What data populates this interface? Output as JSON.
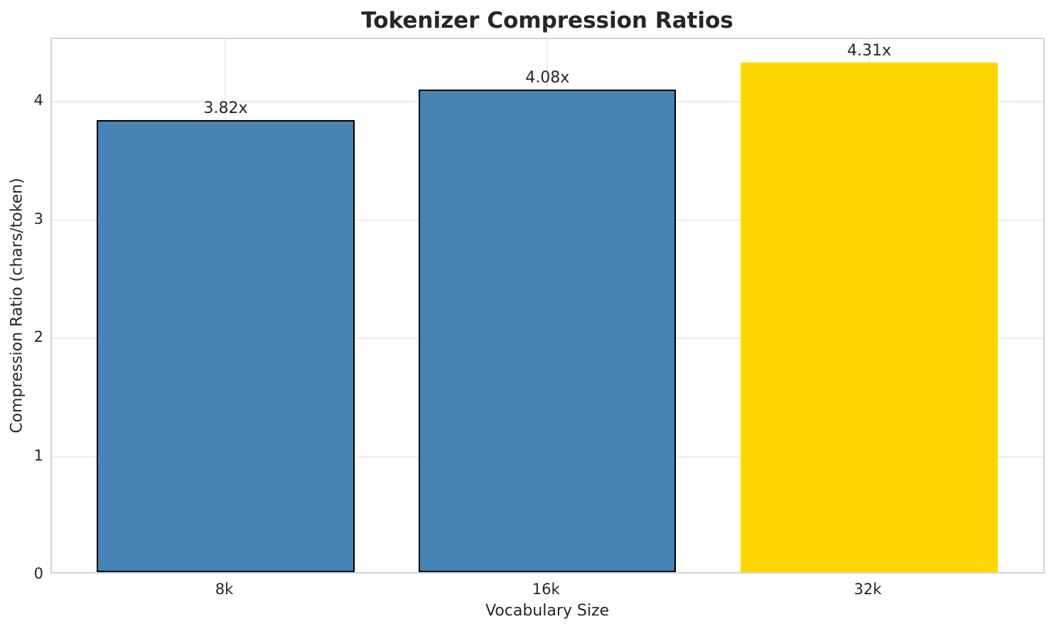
{
  "chart_data": {
    "type": "bar",
    "title": "Tokenizer Compression Ratios",
    "xlabel": "Vocabulary Size",
    "ylabel": "Compression Ratio (chars/token)",
    "categories": [
      "8k",
      "16k",
      "32k"
    ],
    "values": [
      3.82,
      4.08,
      4.31
    ],
    "bar_labels": [
      "3.82x",
      "4.08x",
      "4.31x"
    ],
    "bar_colors": [
      "#4682B4",
      "#4682B4",
      "#FFD700"
    ],
    "bar_edge_colors": [
      "#000000",
      "#000000",
      "none"
    ],
    "yticks": [
      0,
      1,
      2,
      3,
      4
    ],
    "ylim": [
      0,
      4.53
    ],
    "grid": true,
    "legend_position": "none",
    "highlight_category": "32k",
    "colors": {
      "default_bar": "#4682B4",
      "highlight_bar": "#FFD700",
      "bar_edge": "#000000",
      "grid": "#ededed",
      "spine": "#d3d3d3",
      "text": "#262626"
    }
  }
}
